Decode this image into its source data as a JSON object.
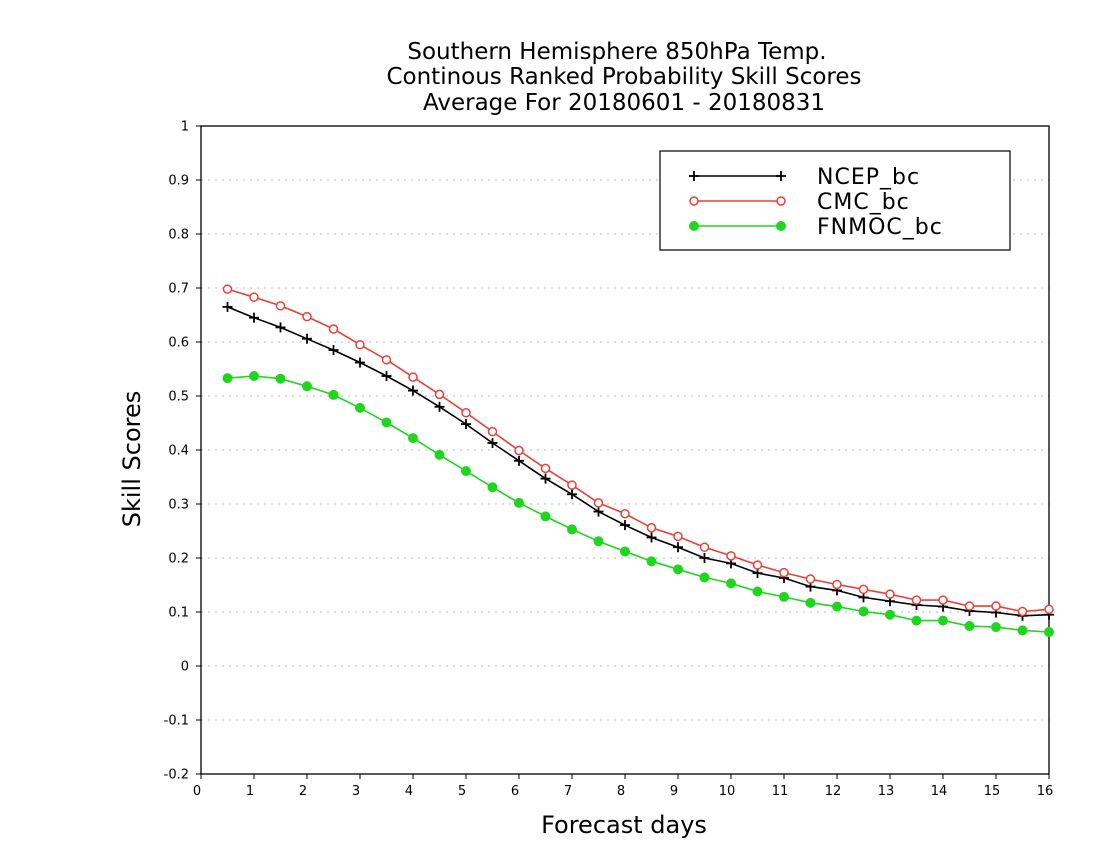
{
  "chart_data": {
    "type": "line",
    "title_lines": [
      "Southern Hemisphere 850hPa Temp.",
      "Continous Ranked Probability Skill Scores",
      "Average For 20180601 - 20180831"
    ],
    "xlabel": "Forecast days",
    "ylabel": "Skill Scores",
    "xlim": [
      0,
      16
    ],
    "ylim": [
      -0.2,
      1
    ],
    "xticks": [
      0,
      1,
      2,
      3,
      4,
      5,
      6,
      7,
      8,
      9,
      10,
      11,
      12,
      13,
      14,
      15,
      16
    ],
    "xtick_labels": [
      "0",
      "1",
      "2",
      "3",
      "4",
      "5",
      "6",
      "7",
      "8",
      "9",
      "10",
      "11",
      "12",
      "13",
      "14",
      "15",
      "16"
    ],
    "yticks": [
      -0.2,
      -0.1,
      0,
      0.1,
      0.2,
      0.3,
      0.4,
      0.5,
      0.6,
      0.7,
      0.8,
      0.9,
      1
    ],
    "ytick_labels": [
      "-0.2",
      "-0.1",
      "0",
      "0.1",
      "0.2",
      "0.3",
      "0.4",
      "0.5",
      "0.6",
      "0.7",
      "0.8",
      "0.9",
      "1"
    ],
    "grid": "horizontal-dotted",
    "legend_position": "top-right",
    "x": [
      0.5,
      1,
      1.5,
      2,
      2.5,
      3,
      3.5,
      4,
      4.5,
      5,
      5.5,
      6,
      6.5,
      7,
      7.5,
      8,
      8.5,
      9,
      9.5,
      10,
      10.5,
      11,
      11.5,
      12,
      12.5,
      13,
      13.5,
      14,
      14.5,
      15,
      15.5,
      16
    ],
    "series": [
      {
        "name": "NCEP_bc",
        "color": "#000000",
        "marker": "plus",
        "values": [
          0.665,
          0.645,
          0.627,
          0.606,
          0.585,
          0.562,
          0.537,
          0.51,
          0.48,
          0.448,
          0.413,
          0.38,
          0.347,
          0.318,
          0.286,
          0.261,
          0.238,
          0.22,
          0.2,
          0.19,
          0.172,
          0.163,
          0.147,
          0.14,
          0.127,
          0.12,
          0.113,
          0.11,
          0.102,
          0.099,
          0.093,
          0.095
        ]
      },
      {
        "name": "CMC_bc",
        "color": "#e8403a",
        "marker": "open-circle",
        "values": [
          0.698,
          0.683,
          0.667,
          0.647,
          0.624,
          0.595,
          0.567,
          0.535,
          0.503,
          0.469,
          0.434,
          0.399,
          0.366,
          0.335,
          0.302,
          0.282,
          0.256,
          0.24,
          0.22,
          0.204,
          0.187,
          0.173,
          0.161,
          0.151,
          0.142,
          0.133,
          0.122,
          0.122,
          0.111,
          0.111,
          0.101,
          0.105
        ]
      },
      {
        "name": "FNMOC_bc",
        "color": "#1fd61f",
        "marker": "filled-circle",
        "values": [
          0.533,
          0.537,
          0.532,
          0.518,
          0.502,
          0.478,
          0.451,
          0.422,
          0.391,
          0.361,
          0.331,
          0.302,
          0.277,
          0.253,
          0.231,
          0.212,
          0.194,
          0.179,
          0.164,
          0.153,
          0.138,
          0.128,
          0.117,
          0.11,
          0.101,
          0.095,
          0.084,
          0.084,
          0.074,
          0.072,
          0.066,
          0.063
        ]
      }
    ]
  }
}
